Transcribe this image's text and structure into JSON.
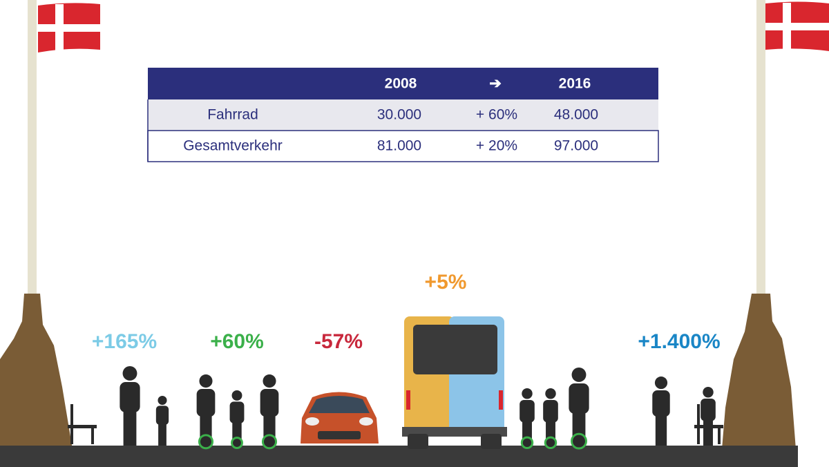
{
  "table": {
    "header": [
      "2008",
      "➔",
      "2016"
    ],
    "rows": [
      [
        "Fahrrad",
        "30.000",
        "+ 60%",
        "48.000"
      ],
      [
        "Gesamtverkehr",
        "81.000",
        "+ 20%",
        "97.000"
      ]
    ]
  },
  "labels": [
    {
      "text": "+165%",
      "color": "#7ccbe6"
    },
    {
      "text": "+60%",
      "color": "#3bb04a"
    },
    {
      "text": "-57%",
      "color": "#c8283c"
    },
    {
      "text": "+5%",
      "color": "#f0992e"
    },
    {
      "text": "+1.400%",
      "color": "#1a86c6"
    }
  ]
}
